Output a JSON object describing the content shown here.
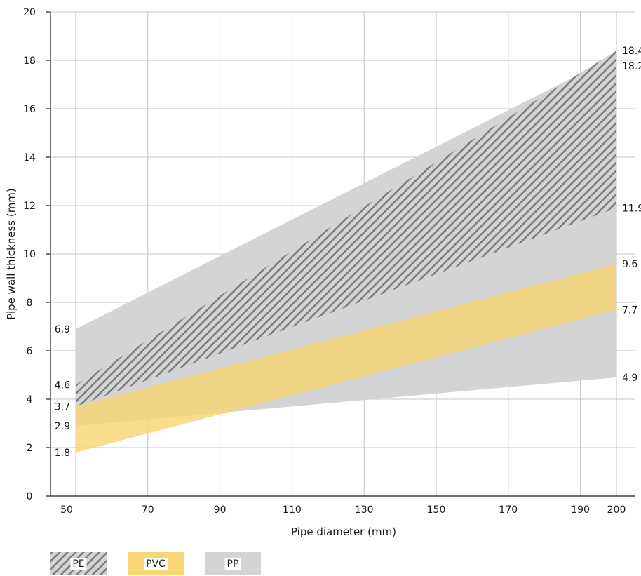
{
  "chart_data": {
    "type": "area",
    "xlabel": "Pipe diameter (mm)",
    "ylabel": "Pipe wall thickness (mm)",
    "xlim": [
      50,
      200
    ],
    "ylim": [
      0,
      20
    ],
    "x_ticks": [
      50,
      70,
      90,
      110,
      130,
      150,
      170,
      190,
      200
    ],
    "y_ticks": [
      0,
      2,
      4,
      6,
      8,
      10,
      12,
      14,
      16,
      18,
      20
    ],
    "grid": true,
    "legend_position": "bottom-left",
    "series": [
      {
        "name": "PP",
        "color": "#d3d4d6",
        "pattern": "solid",
        "x": [
          50,
          200
        ],
        "lower": [
          2.9,
          4.9
        ],
        "upper": [
          6.9,
          18.2
        ]
      },
      {
        "name": "PE",
        "color": "#7d7d7d",
        "pattern": "hatched",
        "x": [
          50,
          200
        ],
        "lower": [
          3.7,
          11.9
        ],
        "upper": [
          4.6,
          18.4
        ]
      },
      {
        "name": "PVC",
        "color": "#f8d675",
        "pattern": "solid",
        "x": [
          50,
          200
        ],
        "lower": [
          1.8,
          7.7
        ],
        "upper": [
          3.7,
          9.6
        ]
      }
    ],
    "left_labels": [
      "6.9",
      "4.6",
      "3.7",
      "2.9",
      "1.8"
    ],
    "right_labels": [
      "18.4",
      "18.2",
      "11.9",
      "9.6",
      "7.7",
      "4.9"
    ]
  },
  "legend": [
    {
      "label": "PE",
      "icon": "hatched-swatch"
    },
    {
      "label": "PVC",
      "icon": "yellow-swatch"
    },
    {
      "label": "PP",
      "icon": "grey-swatch"
    }
  ]
}
